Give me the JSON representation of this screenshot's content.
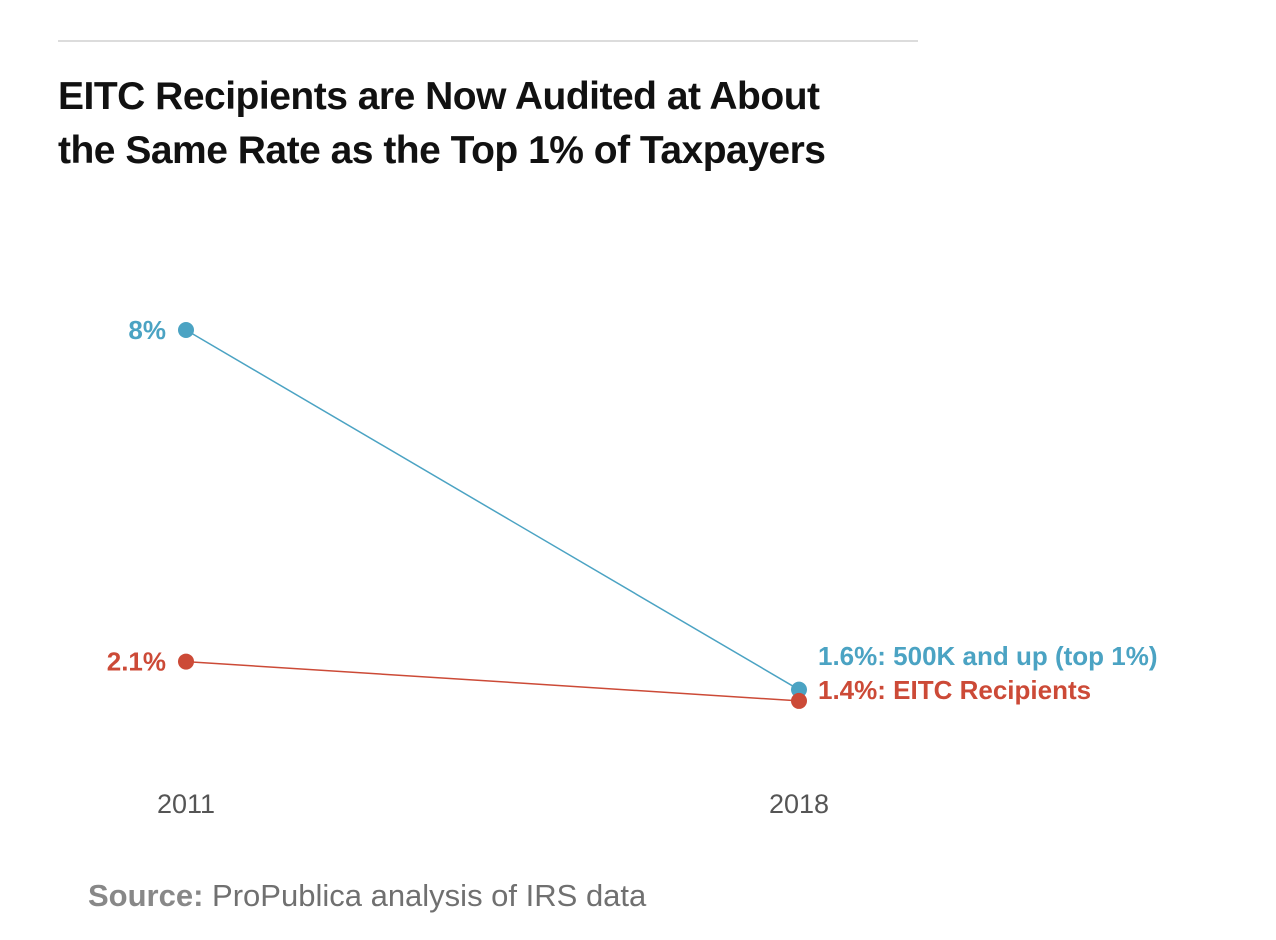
{
  "chart_data": {
    "type": "line",
    "title": "EITC Recipients are Now Audited at About the Same Rate as the Top 1% of Taxpayers",
    "categories": [
      "2011",
      "2018"
    ],
    "series": [
      {
        "name": "500K and up (top 1%)",
        "color": "#4ba3c3",
        "values": [
          8,
          1.6
        ],
        "start_label": "8%",
        "end_label": "1.6%: 500K and up (top 1%)"
      },
      {
        "name": "EITC Recipients",
        "color": "#cc4a37",
        "values": [
          2.1,
          1.4
        ],
        "start_label": "2.1%",
        "end_label": "1.4%: EITC Recipients"
      }
    ],
    "ylim": [
      1.0,
      8.0
    ],
    "xlabel": "",
    "ylabel": "",
    "grid": false
  },
  "source": {
    "label": "Source:",
    "text": "ProPublica analysis of IRS data"
  },
  "colors": {
    "blue": "#4ba3c3",
    "red": "#cc4a37",
    "title": "#111111",
    "axis_text": "#555555"
  }
}
